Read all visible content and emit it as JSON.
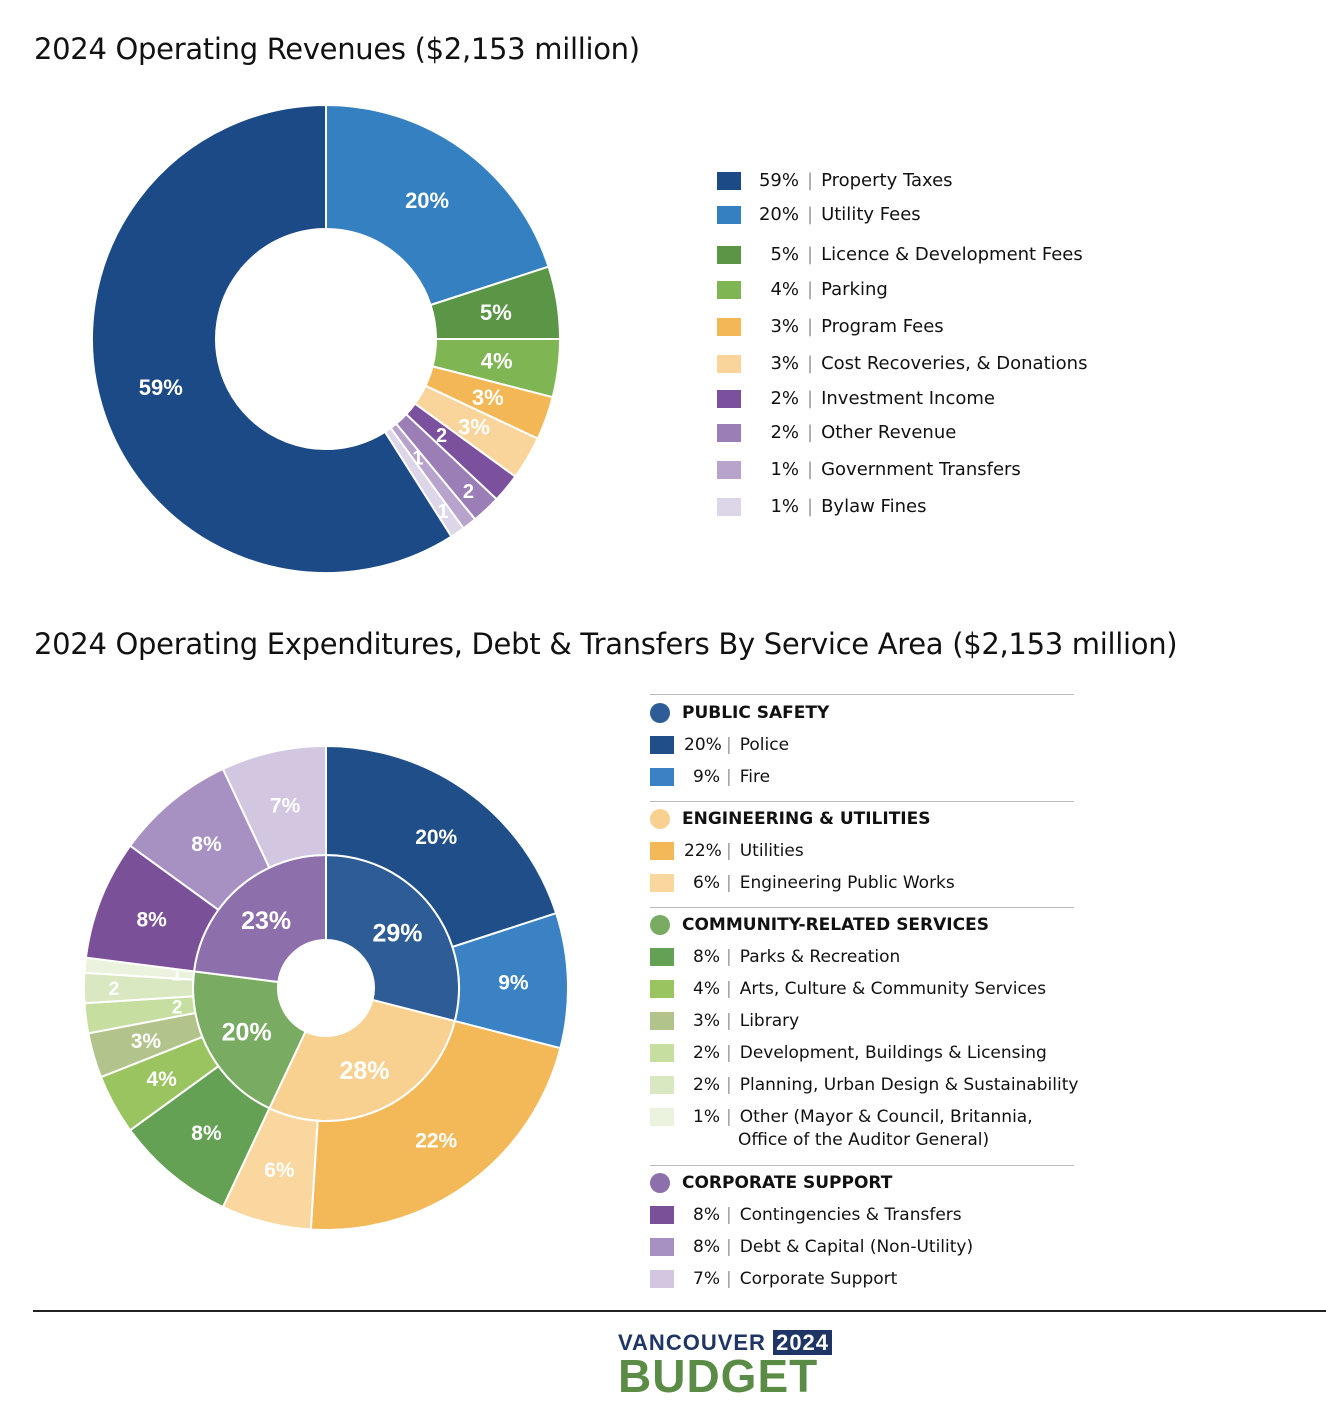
{
  "chart_data": [
    {
      "type": "pie",
      "variant": "donut",
      "title": "2024 Operating Revenues ($2,153 million)",
      "legend_position": "right",
      "slices": [
        {
          "label": "Property Taxes",
          "value": 59,
          "data_label": "59%",
          "color": "#1c4a87"
        },
        {
          "label": "Utility Fees",
          "value": 20,
          "data_label": "20%",
          "color": "#3580c1"
        },
        {
          "label": "Licence & Development Fees",
          "value": 5,
          "data_label": "5%",
          "color": "#5a9645"
        },
        {
          "label": "Parking",
          "value": 4,
          "data_label": "4%",
          "color": "#7fb552"
        },
        {
          "label": "Program Fees",
          "value": 3,
          "data_label": "3%",
          "color": "#f3b755"
        },
        {
          "label": "Cost Recoveries, & Donations",
          "value": 3,
          "data_label": "3%",
          "color": "#f9d59c"
        },
        {
          "label": "Investment Income",
          "value": 2,
          "data_label": "2",
          "color": "#7b519d"
        },
        {
          "label": "Other Revenue",
          "value": 2,
          "data_label": "2",
          "color": "#9b7eb6"
        },
        {
          "label": "Government Transfers",
          "value": 1,
          "data_label": "1",
          "color": "#b7a3cb"
        },
        {
          "label": "Bylaw Fines",
          "value": 1,
          "data_label": "1",
          "color": "#ddd6e8"
        }
      ]
    },
    {
      "type": "pie",
      "variant": "sunburst",
      "title": "2024 Operating Expenditures, Debt & Transfers By Service Area ($2,153 million)",
      "legend_position": "right",
      "groups": [
        {
          "label": "PUBLIC SAFETY",
          "value": 29,
          "data_label": "29%",
          "color": "#2e5c96",
          "items": [
            {
              "label": "Police",
              "value": 20,
              "data_label": "20%",
              "color": "#1f4e89"
            },
            {
              "label": "Fire",
              "value": 9,
              "data_label": "9%",
              "color": "#3a82c4"
            }
          ]
        },
        {
          "label": "ENGINEERING & UTILITIES",
          "value": 28,
          "data_label": "28%",
          "color": "#f8d191",
          "items": [
            {
              "label": "Utilities",
              "value": 22,
              "data_label": "22%",
              "color": "#f3b858"
            },
            {
              "label": "Engineering Public Works",
              "value": 6,
              "data_label": "6%",
              "color": "#f9d79e"
            }
          ]
        },
        {
          "label": "COMMUNITY-RELATED SERVICES",
          "value": 20,
          "data_label": "20%",
          "color": "#79ab63",
          "items": [
            {
              "label": "Parks & Recreation",
              "value": 8,
              "data_label": "8%",
              "color": "#64a154"
            },
            {
              "label": "Arts, Culture & Community Services",
              "value": 4,
              "data_label": "4%",
              "color": "#9ac45f"
            },
            {
              "label": "Library",
              "value": 3,
              "data_label": "3%",
              "color": "#b2c48c"
            },
            {
              "label": "Development, Buildings & Licensing",
              "value": 2,
              "data_label": "2",
              "color": "#c6de9f"
            },
            {
              "label": "Planning, Urban Design & Sustainability",
              "value": 2,
              "data_label": "2",
              "color": "#dae8c2"
            },
            {
              "label": "Other (Mayor & Council, Britannia,",
              "label2": "Office of the Auditor General)",
              "value": 1,
              "data_label": "1",
              "color": "#ebf2de"
            }
          ]
        },
        {
          "label": "CORPORATE SUPPORT",
          "value": 23,
          "data_label": "23%",
          "color": "#8c6fab",
          "items": [
            {
              "label": "Contingencies & Transfers",
              "value": 8,
              "data_label": "8%",
              "color": "#7a5199"
            },
            {
              "label": "Debt & Capital (Non-Utility)",
              "value": 8,
              "data_label": "8%",
              "color": "#a791c2"
            },
            {
              "label": "Corporate Support",
              "value": 7,
              "data_label": "7%",
              "color": "#d2c6e0"
            }
          ]
        }
      ]
    }
  ],
  "logo": {
    "line1": "VANCOUVER",
    "year": "2024",
    "line2": "BUDGET",
    "colors": {
      "navy": "#1f3566",
      "green": "#5b8c45"
    }
  }
}
